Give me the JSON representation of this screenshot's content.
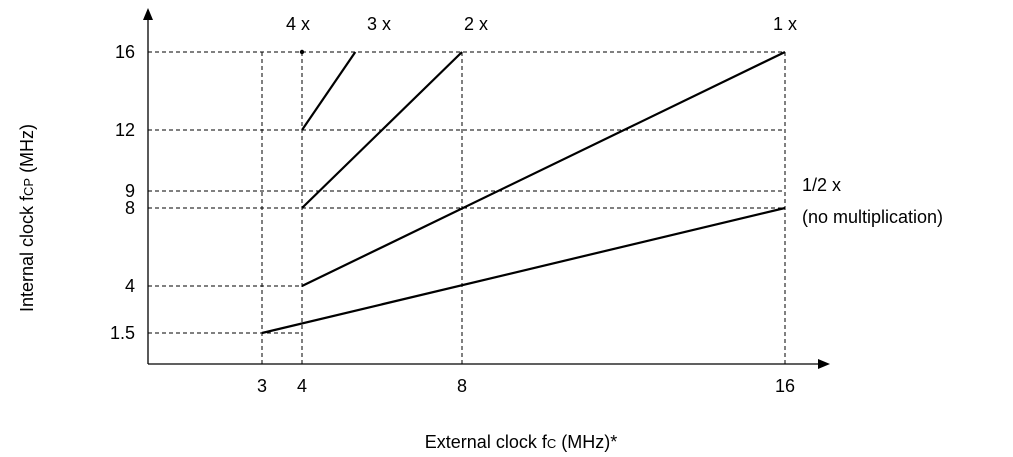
{
  "chart_data": {
    "type": "line",
    "xlabel": "External clock f",
    "xlabel_sub": "C",
    "xlabel_tail": " (MHz)*",
    "ylabel": "Internal clock f",
    "ylabel_sub": "CP",
    "ylabel_tail": " (MHz)",
    "x_ticks": [
      3,
      4,
      8,
      16
    ],
    "y_ticks": [
      1.5,
      4,
      8,
      9,
      12,
      16
    ],
    "grid": "dashed guide lines at tick values",
    "series": [
      {
        "label_lines": [
          "4 x"
        ],
        "x": [
          4,
          4
        ],
        "y": [
          12,
          16
        ],
        "line_x": [
          4,
          4
        ],
        "line_y": [
          12,
          12
        ]
      },
      {
        "label_lines": [
          "3 x"
        ],
        "x": [
          4,
          5.333
        ],
        "y": [
          12,
          16
        ]
      },
      {
        "label_lines": [
          "2 x"
        ],
        "x": [
          4,
          8
        ],
        "y": [
          8,
          16
        ]
      },
      {
        "label_lines": [
          "1 x"
        ],
        "x": [
          4,
          16
        ],
        "y": [
          4,
          16
        ]
      },
      {
        "label_lines": [
          "1/2 x",
          "(no multiplication)"
        ],
        "x": [
          3,
          16
        ],
        "y": [
          1.5,
          8
        ]
      }
    ]
  }
}
